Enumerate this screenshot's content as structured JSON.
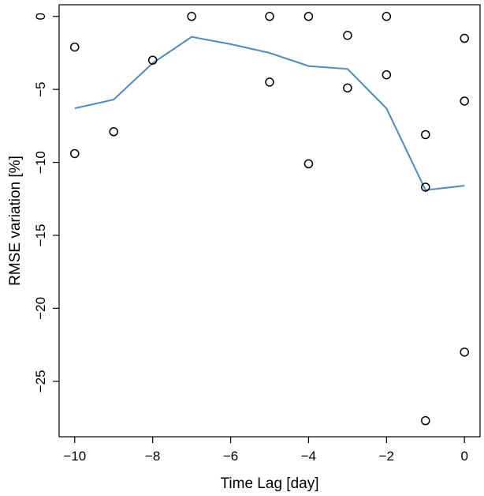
{
  "chart_data": {
    "type": "scatter",
    "xlabel": "Time Lag [day]",
    "ylabel": "RMSE variation [%]",
    "xlim": [
      -10.4,
      0.4
    ],
    "ylim": [
      -28.8,
      0.8
    ],
    "xticks": [
      -10,
      -8,
      -6,
      -4,
      -2,
      0
    ],
    "yticks": [
      0,
      -5,
      -10,
      -15,
      -20,
      -25
    ],
    "xtick_labels": [
      "−10",
      "−8",
      "−6",
      "−4",
      "−2",
      "0"
    ],
    "ytick_labels": [
      "0",
      "−5",
      "−10",
      "−15",
      "−20",
      "−25"
    ],
    "grid": false,
    "points": [
      {
        "x": -10,
        "y": -2.1
      },
      {
        "x": -10,
        "y": -9.4
      },
      {
        "x": -9,
        "y": -7.9
      },
      {
        "x": -8,
        "y": -3.0
      },
      {
        "x": -7,
        "y": 0.0
      },
      {
        "x": -5,
        "y": 0.0
      },
      {
        "x": -5,
        "y": -4.5
      },
      {
        "x": -4,
        "y": 0.0
      },
      {
        "x": -4,
        "y": -10.1
      },
      {
        "x": -3,
        "y": -1.3
      },
      {
        "x": -3,
        "y": -4.9
      },
      {
        "x": -2,
        "y": 0.0
      },
      {
        "x": -2,
        "y": -4.0
      },
      {
        "x": -1,
        "y": -8.1
      },
      {
        "x": -1,
        "y": -11.7
      },
      {
        "x": -1,
        "y": -27.7
      },
      {
        "x": 0,
        "y": -1.5
      },
      {
        "x": 0,
        "y": -5.8
      },
      {
        "x": 0,
        "y": -23.0
      }
    ],
    "line": {
      "x": [
        -10,
        -9,
        -8,
        -7,
        -6,
        -5,
        -4,
        -3,
        -2,
        -1,
        0
      ],
      "y": [
        -6.3,
        -5.7,
        -3.2,
        -1.4,
        -1.9,
        -2.5,
        -3.4,
        -3.6,
        -6.3,
        -11.9,
        -11.6
      ],
      "color": "#4a8ac4"
    }
  }
}
